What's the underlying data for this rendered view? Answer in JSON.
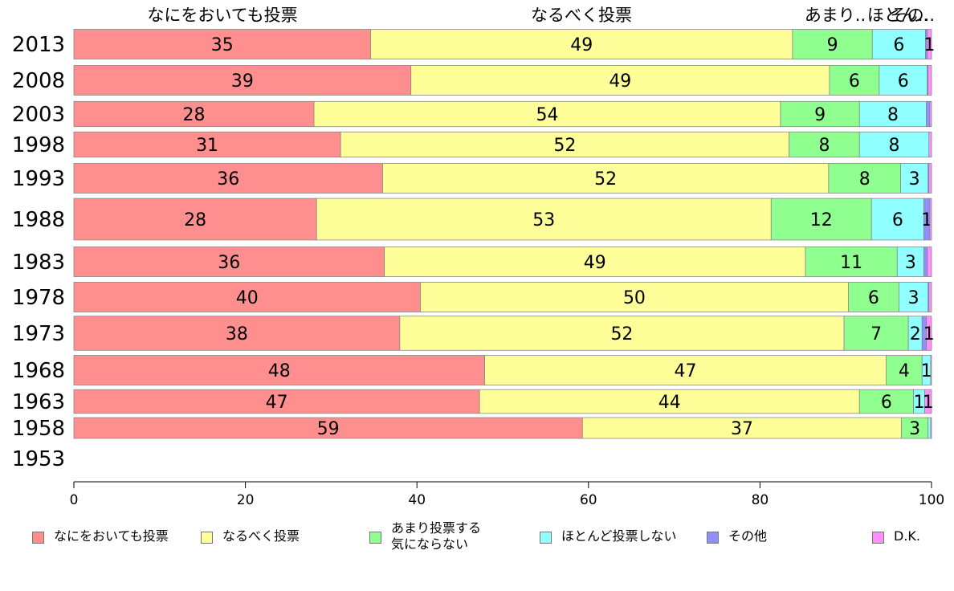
{
  "chart_data": {
    "type": "bar",
    "orientation": "horizontal",
    "stacked": true,
    "categories": [
      "2013",
      "2008",
      "2003",
      "1998",
      "1993",
      "1988",
      "1983",
      "1978",
      "1973",
      "1968",
      "1963",
      "1958",
      "1953"
    ],
    "series": [
      {
        "name": "なにをおいても投票",
        "color": "#ff8f8f",
        "values": [
          35,
          39,
          28,
          31,
          36,
          28,
          36,
          40,
          38,
          48,
          47,
          59,
          null
        ],
        "precise": [
          34.6,
          39.3,
          28.0,
          31.1,
          36.0,
          28.3,
          36.2,
          40.4,
          38.0,
          47.9,
          47.3,
          59.3,
          null
        ]
      },
      {
        "name": "なるべく投票",
        "color": "#ffff99",
        "values": [
          49,
          49,
          54,
          52,
          52,
          53,
          49,
          50,
          52,
          47,
          44,
          37,
          null
        ],
        "precise": [
          49.2,
          48.8,
          54.4,
          52.3,
          52.0,
          53.0,
          49.1,
          49.9,
          51.8,
          46.8,
          44.3,
          37.2,
          null
        ]
      },
      {
        "name": "あまり投票する\n気にならない",
        "color": "#8fff8f",
        "values": [
          9,
          6,
          9,
          8,
          8,
          12,
          11,
          6,
          7,
          4,
          6,
          3,
          null
        ],
        "precise": [
          9.3,
          5.8,
          9.2,
          8.2,
          8.4,
          11.7,
          10.7,
          5.9,
          7.5,
          4.2,
          6.3,
          3.1,
          null
        ]
      },
      {
        "name": "ほとんど投票しない",
        "color": "#8fffff",
        "values": [
          6,
          6,
          8,
          8,
          3,
          6,
          3,
          3,
          2,
          1,
          1,
          0,
          null
        ],
        "precise": [
          6.2,
          5.6,
          7.8,
          8.1,
          3.2,
          6.1,
          3.1,
          3.4,
          1.6,
          1.0,
          1.3,
          0.3,
          null
        ]
      },
      {
        "name": "その他",
        "color": "#8f8fff",
        "values": [
          0,
          0,
          0,
          0,
          0,
          1,
          0,
          0,
          0,
          0,
          0,
          0,
          null
        ],
        "precise": [
          0.2,
          0.1,
          0.4,
          0.0,
          0.1,
          0.7,
          0.4,
          0.1,
          0.5,
          0.0,
          0.0,
          0.0,
          null
        ]
      },
      {
        "name": "D.K.",
        "color": "#ff8fff",
        "values": [
          1,
          0,
          0,
          0,
          0,
          0,
          0,
          0,
          1,
          0,
          1,
          0,
          null
        ],
        "precise": [
          0.5,
          0.4,
          0.2,
          0.3,
          0.3,
          0.2,
          0.5,
          0.3,
          0.6,
          0.1,
          0.8,
          0.1,
          null
        ]
      }
    ],
    "visible_data_labels": [
      [
        "35",
        "49",
        "9",
        "6",
        "",
        "1"
      ],
      [
        "39",
        "49",
        "6",
        "6",
        "",
        ""
      ],
      [
        "28",
        "54",
        "9",
        "8",
        "",
        ""
      ],
      [
        "31",
        "52",
        "8",
        "8",
        "",
        ""
      ],
      [
        "36",
        "52",
        "8",
        "3",
        "",
        ""
      ],
      [
        "28",
        "53",
        "12",
        "6",
        "1",
        ""
      ],
      [
        "36",
        "49",
        "11",
        "3",
        "",
        ""
      ],
      [
        "40",
        "50",
        "6",
        "3",
        "",
        ""
      ],
      [
        "38",
        "52",
        "7",
        "2",
        "",
        "1"
      ],
      [
        "48",
        "47",
        "4",
        "1",
        "",
        ""
      ],
      [
        "47",
        "44",
        "6",
        "1",
        "",
        "1"
      ],
      [
        "59",
        "37",
        "3",
        "",
        "",
        ""
      ],
      [
        "",
        "",
        "",
        "",
        "",
        ""
      ]
    ],
    "relative_bar_heights": [
      1.0,
      1.0,
      0.85,
      0.85,
      1.0,
      1.4,
      1.0,
      1.0,
      1.15,
      1.0,
      0.8,
      0.7,
      0
    ],
    "top_labels": [
      "なにをおいても投票",
      "なるべく投票",
      "あまり..",
      "ほとん..",
      "その.."
    ],
    "xlim": [
      0,
      100
    ],
    "xticks": [
      "0",
      "20",
      "40",
      "60",
      "80",
      "100"
    ],
    "xlabel": "",
    "ylabel": "",
    "title": "",
    "grid": false,
    "legend_position": "bottom"
  }
}
